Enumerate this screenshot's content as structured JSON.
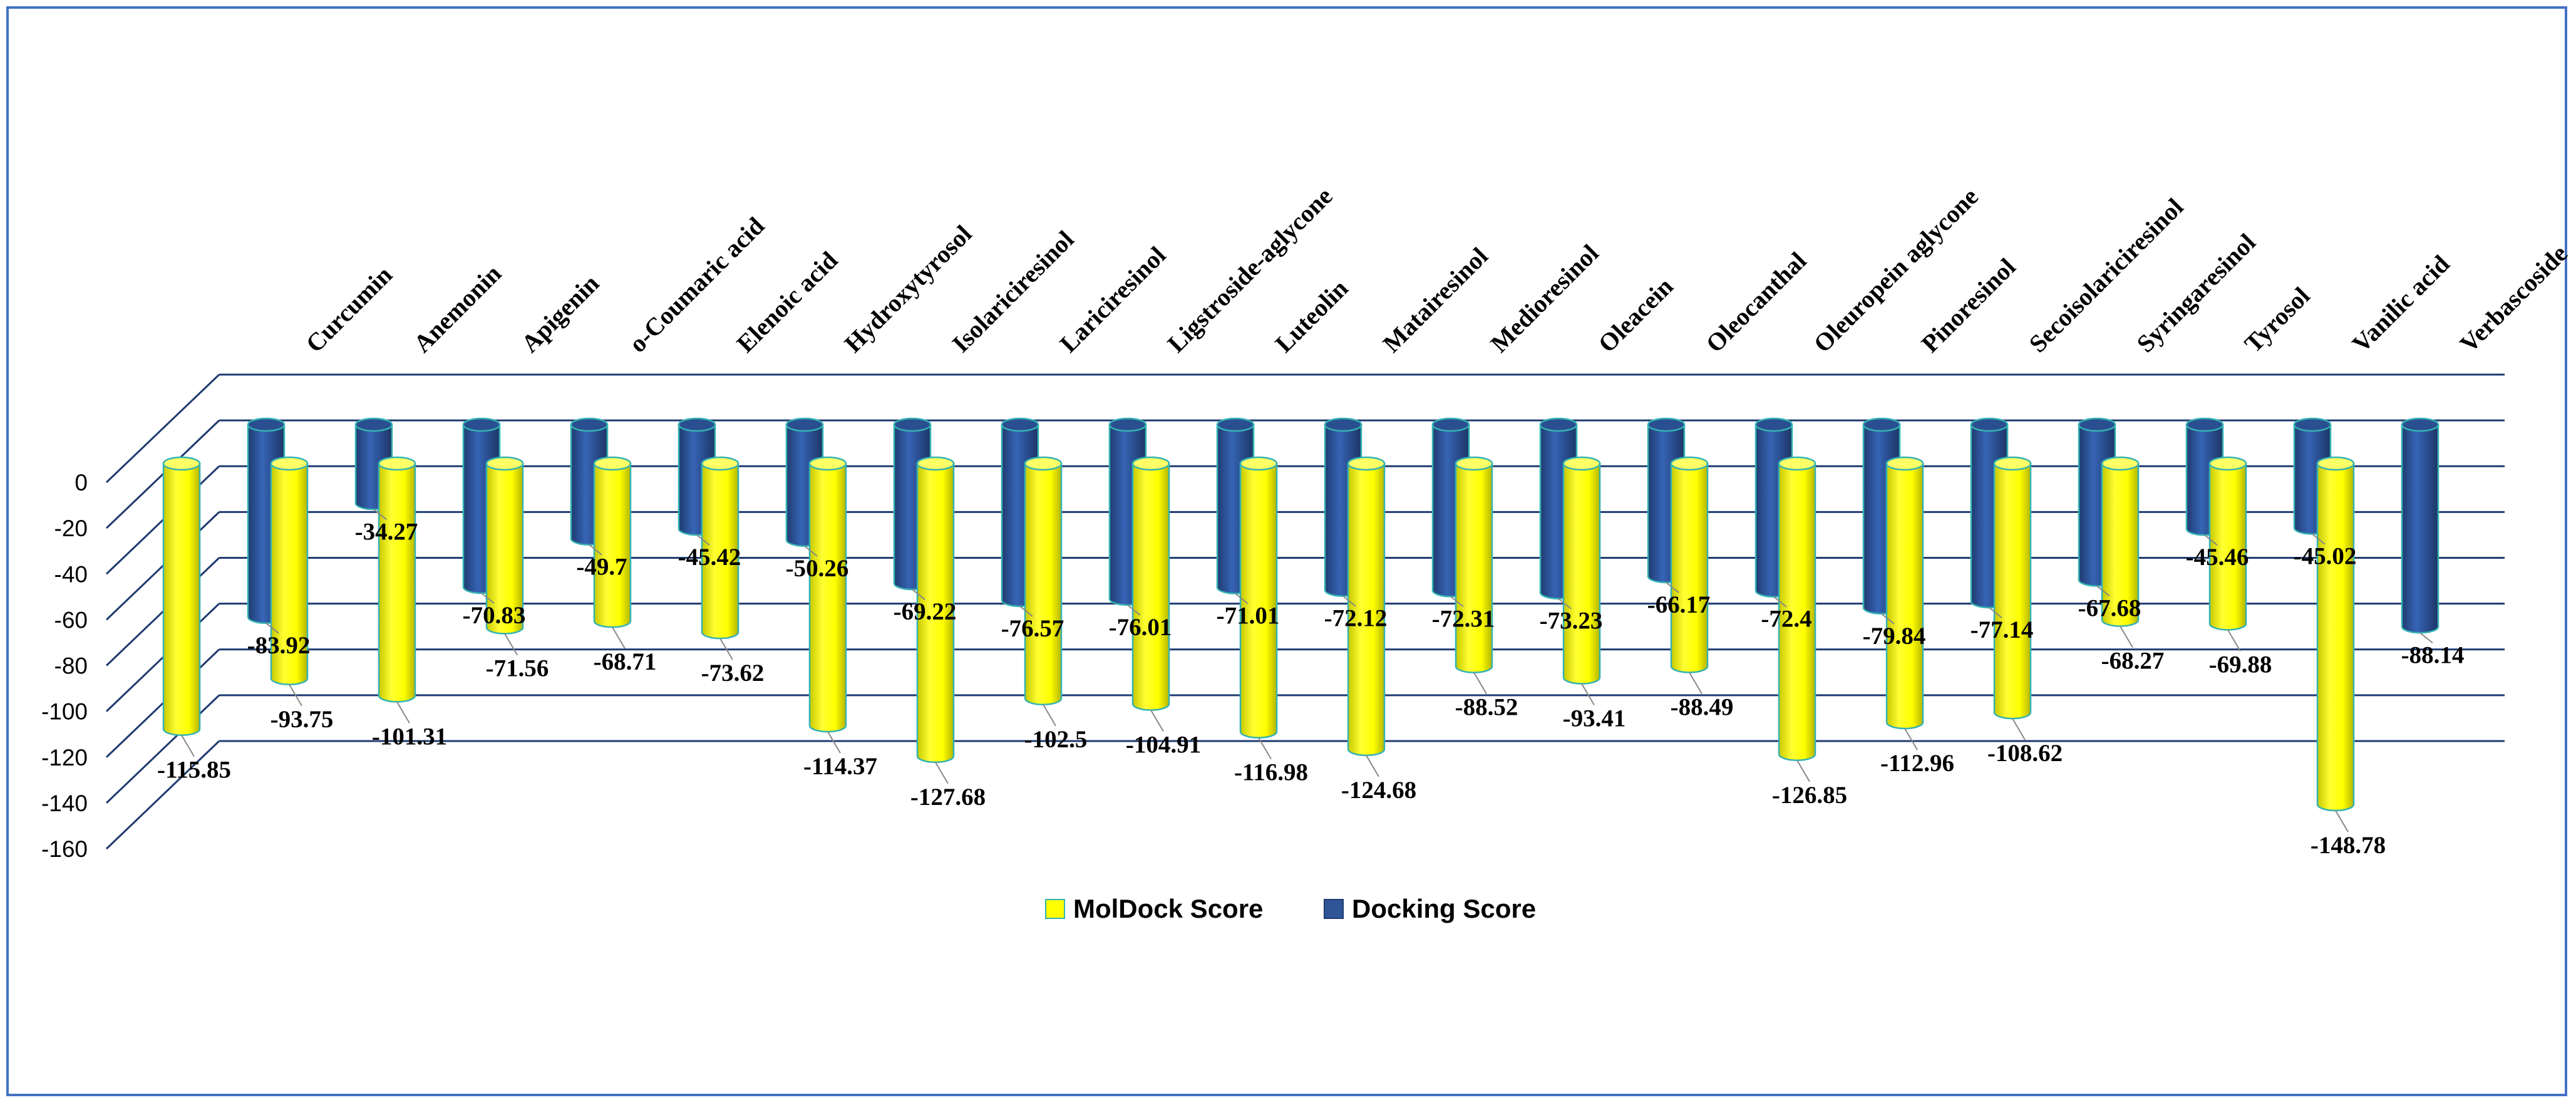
{
  "chart_data": {
    "type": "bar",
    "title": "",
    "xlabel": "",
    "ylabel": "",
    "ylim": [
      -160,
      0
    ],
    "yticks": [
      "0",
      "-20",
      "-40",
      "-60",
      "-80",
      "-100",
      "-120",
      "-140",
      "-160"
    ],
    "categories": [
      "Curcumin",
      "Anemonin",
      "Apigenin",
      "o-Coumaric acid",
      "Elenoic acid",
      "Hydroxytyrosol",
      "Isolariciresinol",
      "Lariciresinol",
      "Ligstroside-aglycone",
      "Luteolin",
      "Matairesinol",
      "Medioresinol",
      "Oleacein",
      "Oleocanthal",
      "Oleuropein aglycone",
      "Pinoresinol",
      "Secoisolariciresinol",
      "Syringaresinol",
      "Tyrosol",
      "Vanilic acid",
      "Verbascoside"
    ],
    "series": [
      {
        "name": "MolDock Score",
        "color": "#ffff00",
        "values": [
          -115.85,
          -93.75,
          -101.31,
          -71.56,
          -68.71,
          -73.62,
          -114.37,
          -127.68,
          -102.5,
          -104.91,
          -116.98,
          -124.68,
          -88.52,
          -93.41,
          -88.49,
          -126.85,
          -112.96,
          -108.62,
          -68.27,
          -69.88,
          -148.78
        ],
        "labels": [
          "-115.85",
          "-93.75",
          "-101.31",
          "-71.56",
          "-68.71",
          "-73.62",
          "-114.37",
          "-127.68",
          "-102.5",
          "-104.91",
          "-116.98",
          "-124.68",
          "-88.52",
          "-93.41",
          "-88.49",
          "-126.85",
          "-112.96",
          "-108.62",
          "-68.27",
          "-69.88",
          "-148.78"
        ]
      },
      {
        "name": "Docking Score",
        "color": "#2f5597",
        "values": [
          -83.92,
          -34.27,
          -70.83,
          -49.7,
          -45.42,
          -50.26,
          -69.22,
          -76.57,
          -76.01,
          -71.01,
          -72.12,
          -72.31,
          -73.23,
          -66.17,
          -72.4,
          -79.84,
          -77.14,
          -67.68,
          -45.46,
          -45.02,
          -88.14
        ],
        "labels": [
          "-83.92",
          "-34.27",
          "-70.83",
          "-49.7",
          "-45.42",
          "-50.26",
          "-69.22",
          "-76.57",
          "-76.01",
          "-71.01",
          "-72.12",
          "-72.31",
          "-73.23",
          "-66.17",
          "-72.4",
          "-79.84",
          "-77.14",
          "-67.68",
          "-45.46",
          "-45.02",
          "-88.14"
        ]
      }
    ],
    "legend": {
      "position": "bottom",
      "items": [
        "MolDock Score",
        "Docking Score"
      ]
    }
  }
}
